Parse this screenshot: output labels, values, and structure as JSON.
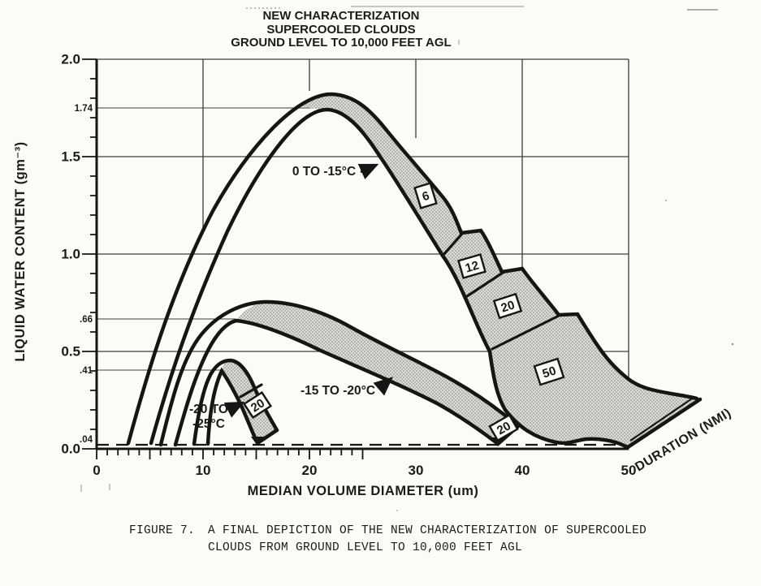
{
  "title": {
    "line1": "NEW CHARACTERIZATION",
    "line2": "SUPERCOOLED CLOUDS",
    "line3": "GROUND LEVEL TO 10,000 FEET AGL"
  },
  "y_axis": {
    "label": "LIQUID WATER CONTENT (gm⁻³)",
    "ticks": [
      "2.0",
      "1.5",
      "1.0",
      "0.5",
      "0.0"
    ],
    "ref_labels": {
      "v174": "1.74",
      "v66": ".66",
      "v41": ".41",
      "v04": ".04"
    }
  },
  "x_axis": {
    "label": "MEDIAN VOLUME DIAMETER (um)",
    "ticks": [
      "0",
      "10",
      "20",
      "30",
      "40",
      "50"
    ]
  },
  "bands": {
    "warm": {
      "label": "0 TO -15°C",
      "d6": "6",
      "d12": "12",
      "d20": "20",
      "d50": "50"
    },
    "mid": {
      "label": "-15 TO -20°C",
      "d20": "20"
    },
    "cold": {
      "label_line1": "-20 TO",
      "label_line2": "-25°C",
      "d20": "20"
    }
  },
  "duration_axis_label": "DURATION (NMI)",
  "caption": {
    "figure_label": "FIGURE 7.",
    "line1": "A FINAL DEPICTION OF THE NEW CHARACTERIZATION OF SUPERCOOLED",
    "line2": "CLOUDS FROM GROUND LEVEL TO 10,000 FEET AGL"
  },
  "colors": {
    "ink": "#151513",
    "paper": "#fcfbf7",
    "halftone_base": "#dcdcd8",
    "halftone_dot": "#8d8d88"
  },
  "chart_data": {
    "type": "area",
    "title": "NEW CHARACTERIZATION SUPERCOOLED CLOUDS, GROUND LEVEL TO 10,000 FEET AGL",
    "xlabel": "MEDIAN VOLUME DIAMETER (um)",
    "ylabel": "LIQUID WATER CONTENT (gm-3)",
    "xlim": [
      0,
      50
    ],
    "ylim": [
      0,
      2.0
    ],
    "x_ticks": [
      0,
      10,
      20,
      30,
      40,
      50
    ],
    "y_ticks": [
      0.0,
      0.5,
      1.0,
      1.5,
      2.0
    ],
    "x_minor_step": 2,
    "y_minor_step": 0.1,
    "grid": true,
    "baseline_dashed_lwc": 0.04,
    "reference_lwc_values": [
      1.74,
      0.66,
      0.41,
      0.04
    ],
    "duration_axis_label": "DURATION (NMI)",
    "series": [
      {
        "name": "0 TO -15 C",
        "peak_lwc_labeled": 1.74,
        "duration_segments_nmi": [
          6,
          12,
          20,
          50
        ],
        "upper_envelope": [
          [
            3,
            0.04
          ],
          [
            6.6,
            0.64
          ],
          [
            10.9,
            1.22
          ],
          [
            16.9,
            1.66
          ],
          [
            22,
            1.82
          ],
          [
            27,
            1.68
          ],
          [
            31,
            1.5
          ],
          [
            34.3,
            1.11
          ],
          [
            36,
            1.12
          ],
          [
            38.1,
            0.91
          ],
          [
            40,
            0.92
          ],
          [
            43.6,
            0.69
          ],
          [
            45.1,
            0.69
          ],
          [
            48.2,
            0.46
          ],
          [
            50,
            0.35
          ],
          [
            53.5,
            0.29
          ],
          [
            56.7,
            0.25
          ]
        ],
        "lower_envelope": [
          [
            5.1,
            0.04
          ],
          [
            8.3,
            0.64
          ],
          [
            12.3,
            1.24
          ],
          [
            18.4,
            1.68
          ],
          [
            21.7,
            1.74
          ],
          [
            26.6,
            1.5
          ],
          [
            29.5,
            1.26
          ],
          [
            32.5,
            0.99
          ],
          [
            34.6,
            0.78
          ],
          [
            36.9,
            0.5
          ],
          [
            38.2,
            0.21
          ],
          [
            43.2,
            0.05
          ],
          [
            45.9,
            0.05
          ],
          [
            49.7,
            0.04
          ]
        ]
      },
      {
        "name": "-15 TO -20 C",
        "peak_lwc_labeled": 0.66,
        "duration_segments_nmi": [
          20
        ],
        "upper_envelope": [
          [
            6,
            0.04
          ],
          [
            9.2,
            0.53
          ],
          [
            15.7,
            0.75
          ],
          [
            23,
            0.63
          ],
          [
            33,
            0.38
          ],
          [
            39.6,
            0.12
          ]
        ],
        "lower_envelope": [
          [
            7.4,
            0.04
          ],
          [
            10.8,
            0.47
          ],
          [
            13.1,
            0.65
          ],
          [
            19.9,
            0.53
          ],
          [
            29.1,
            0.32
          ],
          [
            36,
            0.1
          ],
          [
            37.7,
            0.04
          ]
        ]
      },
      {
        "name": "-20 TO -25 C",
        "peak_lwc_labeled": 0.41,
        "duration_segments_nmi": [
          20
        ],
        "upper_envelope": [
          [
            9.2,
            0.04
          ],
          [
            10.6,
            0.38
          ],
          [
            12.5,
            0.45
          ],
          [
            14.6,
            0.33
          ],
          [
            17,
            0.1
          ]
        ],
        "lower_envelope": [
          [
            10.5,
            0.04
          ],
          [
            11.8,
            0.4
          ],
          [
            13.4,
            0.28
          ],
          [
            15.1,
            0.04
          ]
        ]
      }
    ]
  }
}
